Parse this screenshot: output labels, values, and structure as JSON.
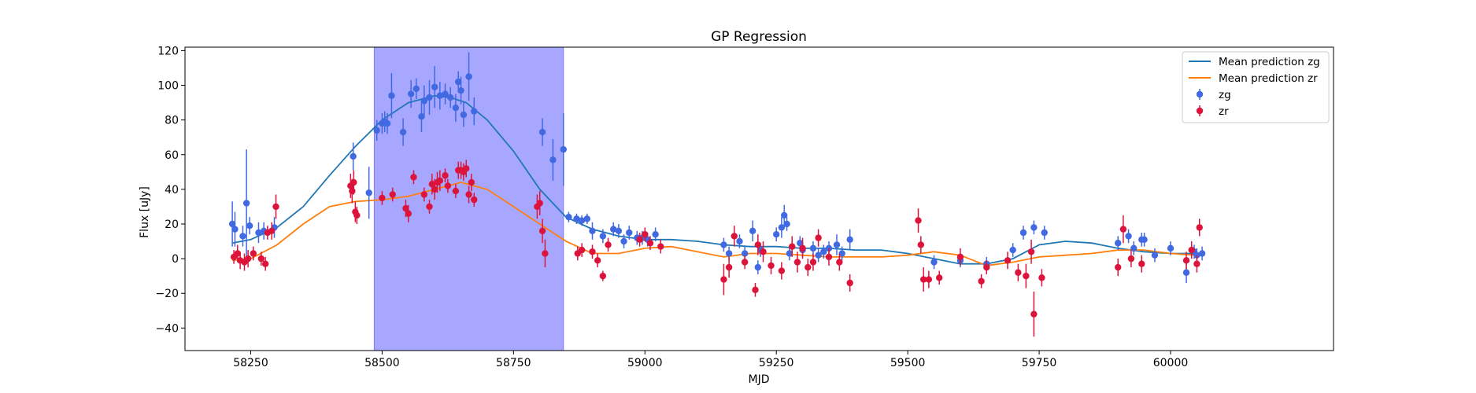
{
  "chart_data": {
    "type": "scatter",
    "title": "GP Regression",
    "xlabel": "MJD",
    "ylabel": "Flux [uJy]",
    "xlim": [
      58125,
      60310
    ],
    "ylim": [
      -53,
      122
    ],
    "xticks": [
      58250,
      58500,
      58750,
      59000,
      59250,
      59500,
      59750,
      60000
    ],
    "yticks": [
      -40,
      -20,
      0,
      20,
      40,
      60,
      80,
      100,
      120
    ],
    "grid": false,
    "legend_position": "top-right",
    "shaded_region": {
      "x_start": 58485,
      "x_end": 58845,
      "color": "#a7a7ff"
    },
    "legend": [
      {
        "label": "Mean prediction zg",
        "kind": "line",
        "color": "#1f77b4"
      },
      {
        "label": "Mean prediction zr",
        "kind": "line",
        "color": "#ff7f0e"
      },
      {
        "label": "zg",
        "kind": "errorbar",
        "color": "#4169e1"
      },
      {
        "label": "zr",
        "kind": "errorbar",
        "color": "#dc143c"
      }
    ],
    "lines": [
      {
        "name": "Mean prediction zg",
        "color": "#1f77b4",
        "x": [
          58215,
          58250,
          58300,
          58350,
          58400,
          58450,
          58500,
          58550,
          58600,
          58630,
          58660,
          58700,
          58750,
          58800,
          58850,
          58900,
          58950,
          59000,
          59050,
          59100,
          59150,
          59200,
          59250,
          59300,
          59350,
          59400,
          59450,
          59500,
          59550,
          59600,
          59650,
          59700,
          59750,
          59800,
          59850,
          59900,
          59950,
          60000,
          60050
        ],
        "y": [
          9,
          11,
          18,
          30,
          48,
          65,
          80,
          90,
          94,
          93,
          90,
          80,
          62,
          40,
          24,
          17,
          13,
          11,
          11,
          10,
          8,
          7,
          7,
          6,
          6,
          5,
          5,
          3,
          0,
          -3,
          -3,
          0,
          8,
          10,
          9,
          6,
          4,
          3,
          3
        ]
      },
      {
        "name": "Mean prediction zr",
        "color": "#ff7f0e",
        "x": [
          58215,
          58250,
          58300,
          58350,
          58400,
          58450,
          58500,
          58550,
          58600,
          58650,
          58700,
          58750,
          58800,
          58850,
          58900,
          58950,
          59000,
          59050,
          59100,
          59150,
          59200,
          59250,
          59300,
          59350,
          59400,
          59450,
          59500,
          59550,
          59600,
          59650,
          59700,
          59750,
          59800,
          59850,
          59900,
          59950,
          60000,
          60050
        ],
        "y": [
          -1,
          0,
          8,
          20,
          30,
          33,
          34,
          36,
          40,
          44,
          40,
          30,
          20,
          10,
          3,
          3,
          6,
          7,
          4,
          1,
          3,
          3,
          2,
          1,
          1,
          1,
          2,
          4,
          2,
          -4,
          -2,
          1,
          2,
          3,
          5,
          5,
          3,
          2
        ]
      }
    ],
    "series": [
      {
        "name": "zg",
        "color": "#4169e1",
        "x": [
          58215,
          58220,
          58235,
          58242,
          58248,
          58265,
          58275,
          58295,
          58445,
          58475,
          58490,
          58500,
          58505,
          58510,
          58518,
          58540,
          58555,
          58565,
          58575,
          58580,
          58590,
          58600,
          58610,
          58620,
          58630,
          58640,
          58645,
          58650,
          58655,
          58665,
          58675,
          58805,
          58825,
          58845,
          58855,
          58870,
          58880,
          58890,
          58900,
          58920,
          58940,
          58950,
          58960,
          58970,
          58985,
          58995,
          59005,
          59020,
          59150,
          59160,
          59180,
          59190,
          59205,
          59215,
          59220,
          59250,
          59260,
          59265,
          59270,
          59275,
          59295,
          59300,
          59320,
          59330,
          59340,
          59350,
          59365,
          59375,
          59390,
          59550,
          59600,
          59650,
          59700,
          59720,
          59740,
          59760,
          59900,
          59920,
          59930,
          59945,
          59950,
          59970,
          60000,
          60030,
          60045,
          60050,
          60060
        ],
        "y": [
          20,
          17,
          13,
          32,
          19,
          15,
          16,
          18,
          59,
          38,
          74,
          78,
          79,
          78,
          94,
          73,
          95,
          98,
          82,
          91,
          93,
          99,
          94,
          95,
          93,
          87,
          102,
          97,
          83,
          105,
          85,
          73,
          57,
          63,
          24,
          23,
          22,
          23,
          16,
          13,
          17,
          16,
          10,
          15,
          12,
          12,
          11,
          14,
          8,
          3,
          10,
          3,
          16,
          -5,
          5,
          14,
          18,
          25,
          20,
          3,
          9,
          5,
          6,
          2,
          4,
          6,
          8,
          3,
          11,
          -2,
          -1,
          -3,
          5,
          15,
          18,
          15,
          9,
          13,
          6,
          11,
          11,
          2,
          6,
          -8,
          4,
          2,
          3
        ],
        "yerr": [
          13,
          10,
          6,
          31,
          5,
          6,
          5,
          6,
          8,
          15,
          6,
          6,
          6,
          6,
          13,
          8,
          8,
          6,
          9,
          9,
          10,
          12,
          8,
          6,
          6,
          8,
          6,
          8,
          7,
          14,
          8,
          8,
          12,
          21,
          3,
          3,
          3,
          3,
          5,
          4,
          4,
          4,
          4,
          4,
          4,
          4,
          4,
          4,
          4,
          4,
          4,
          4,
          6,
          4,
          4,
          4,
          6,
          6,
          4,
          4,
          4,
          4,
          4,
          4,
          4,
          4,
          6,
          4,
          6,
          4,
          4,
          4,
          4,
          4,
          4,
          4,
          4,
          4,
          4,
          4,
          4,
          4,
          4,
          6,
          4,
          4,
          4
        ]
      },
      {
        "name": "zr",
        "color": "#dc143c",
        "x": [
          58218,
          58225,
          58230,
          58238,
          58245,
          58255,
          58270,
          58278,
          58282,
          58290,
          58298,
          58440,
          58443,
          58446,
          58449,
          58452,
          58500,
          58520,
          58545,
          58550,
          58560,
          58580,
          58590,
          58595,
          58600,
          58605,
          58610,
          58620,
          58625,
          58640,
          58645,
          58650,
          58655,
          58660,
          58665,
          58670,
          58675,
          58795,
          58800,
          58805,
          58810,
          58872,
          58880,
          58900,
          58910,
          58920,
          58930,
          58990,
          59000,
          59010,
          59030,
          59150,
          59160,
          59170,
          59190,
          59210,
          59215,
          59225,
          59240,
          59260,
          59280,
          59290,
          59300,
          59310,
          59320,
          59330,
          59350,
          59370,
          59390,
          59520,
          59525,
          59530,
          59540,
          59560,
          59600,
          59640,
          59650,
          59690,
          59710,
          59725,
          59735,
          59740,
          59755,
          59900,
          59910,
          59925,
          59945,
          60030,
          60040,
          60050,
          60055
        ],
        "y": [
          1,
          3,
          -1,
          -2,
          0,
          3,
          0,
          -3,
          15,
          16,
          30,
          42,
          39,
          44,
          27,
          25,
          35,
          37,
          29,
          26,
          47,
          37,
          30,
          43,
          40,
          44,
          45,
          48,
          42,
          39,
          51,
          51,
          50,
          52,
          37,
          44,
          34,
          30,
          32,
          16,
          3,
          3,
          5,
          4,
          -1,
          -10,
          8,
          11,
          14,
          9,
          7,
          -12,
          -5,
          13,
          -2,
          -18,
          8,
          4,
          -4,
          -7,
          7,
          -2,
          6,
          -5,
          -2,
          12,
          1,
          -2,
          -14,
          22,
          8,
          -12,
          -12,
          -11,
          1,
          -13,
          -5,
          -1,
          -8,
          -10,
          4,
          -32,
          -11,
          -5,
          17,
          0,
          -3,
          -1,
          5,
          -3,
          18
        ],
        "yerr": [
          4,
          5,
          5,
          5,
          5,
          4,
          4,
          4,
          4,
          5,
          7,
          7,
          7,
          7,
          6,
          5,
          4,
          4,
          5,
          5,
          4,
          4,
          4,
          6,
          6,
          6,
          6,
          4,
          4,
          4,
          5,
          5,
          5,
          5,
          5,
          5,
          4,
          7,
          7,
          7,
          8,
          4,
          4,
          4,
          4,
          3,
          4,
          4,
          4,
          4,
          4,
          9,
          6,
          6,
          4,
          4,
          6,
          6,
          5,
          5,
          6,
          6,
          6,
          5,
          5,
          5,
          5,
          5,
          5,
          7,
          5,
          7,
          5,
          4,
          5,
          4,
          4,
          5,
          5,
          7,
          7,
          13,
          5,
          5,
          8,
          5,
          5,
          5,
          5,
          5,
          5
        ]
      }
    ]
  }
}
